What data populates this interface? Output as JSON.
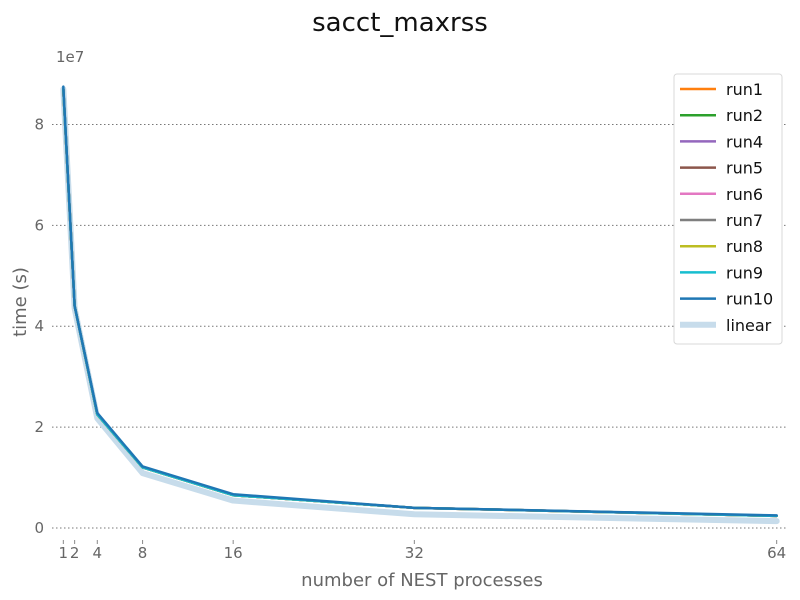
{
  "chart_data": {
    "type": "line",
    "title": "sacct_maxrss",
    "xlabel": "number of NEST processes",
    "ylabel": "time (s)",
    "y_offset_label": "1e7",
    "xlim": [
      0,
      65
    ],
    "ylim": [
      0,
      90000000
    ],
    "x_ticks": [
      1,
      2,
      4,
      8,
      16,
      32,
      64
    ],
    "x_tick_labels": [
      "1",
      "2",
      "4",
      "8",
      "16",
      "32",
      "64"
    ],
    "y_ticks": [
      0,
      20000000,
      40000000,
      60000000,
      80000000
    ],
    "y_tick_labels": [
      "0",
      "2",
      "4",
      "6",
      "8"
    ],
    "grid": "horizontal dotted",
    "legend_position": "top-right",
    "series": [
      {
        "name": "run1",
        "color": "#ff7f0e",
        "x": [
          1,
          2,
          4,
          8,
          16,
          32,
          64
        ],
        "values": [
          87000000,
          44000000,
          22500000,
          12000000,
          6500000,
          4000000,
          2400000
        ]
      },
      {
        "name": "run2",
        "color": "#2ca02c",
        "x": [
          1,
          2,
          4,
          8,
          16,
          32,
          64
        ],
        "values": [
          87000000,
          44000000,
          22500000,
          12000000,
          6500000,
          4000000,
          2400000
        ]
      },
      {
        "name": "run4",
        "color": "#9467bd",
        "x": [
          1,
          2,
          4,
          8,
          16,
          32,
          64
        ],
        "values": [
          87000000,
          44000000,
          22500000,
          12000000,
          6500000,
          4000000,
          2400000
        ]
      },
      {
        "name": "run5",
        "color": "#8c564b",
        "x": [
          1,
          2,
          4,
          8,
          16,
          32,
          64
        ],
        "values": [
          87000000,
          44000000,
          22500000,
          12000000,
          6500000,
          4000000,
          2400000
        ]
      },
      {
        "name": "run6",
        "color": "#e377c2",
        "x": [
          1,
          2,
          4,
          8,
          16,
          32,
          64
        ],
        "values": [
          87000000,
          44000000,
          22500000,
          12000000,
          6500000,
          4000000,
          2400000
        ]
      },
      {
        "name": "run7",
        "color": "#7f7f7f",
        "x": [
          1,
          2,
          4,
          8,
          16,
          32,
          64
        ],
        "values": [
          87000000,
          44000000,
          22500000,
          12000000,
          6500000,
          4000000,
          2400000
        ]
      },
      {
        "name": "run8",
        "color": "#bcbd22",
        "x": [
          1,
          2,
          4,
          8,
          16,
          32,
          64
        ],
        "values": [
          87000000,
          44000000,
          22500000,
          12000000,
          6500000,
          4000000,
          2400000
        ]
      },
      {
        "name": "run9",
        "color": "#17becf",
        "x": [
          1,
          2,
          4,
          8,
          16,
          32,
          64
        ],
        "values": [
          87000000,
          44000000,
          22500000,
          12000000,
          6500000,
          4000000,
          2400000
        ]
      },
      {
        "name": "run10",
        "color": "#1f77b4",
        "x": [
          1,
          2,
          4,
          8,
          16,
          32,
          64
        ],
        "values": [
          87500000,
          44000000,
          22800000,
          12200000,
          6700000,
          4000000,
          2500000
        ]
      },
      {
        "name": "linear",
        "color": "#c7dceb",
        "x": [
          1,
          2,
          4,
          8,
          16,
          32,
          64
        ],
        "values": [
          87000000,
          43500000,
          21750000,
          10875000,
          5437500,
          2718750,
          1359375
        ]
      }
    ]
  }
}
